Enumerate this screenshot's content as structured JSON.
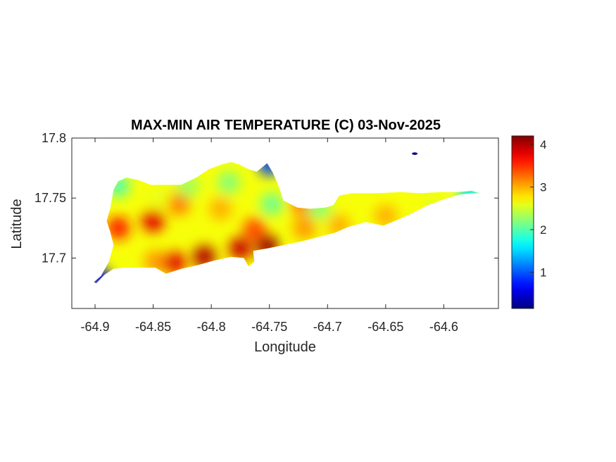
{
  "chart_data": {
    "type": "heatmap",
    "title": "MAX-MIN AIR TEMPERATURE (C) 03-Nov-2025",
    "xlabel": "Longitude",
    "ylabel": "Latitude",
    "xlim": [
      -64.92,
      -64.553
    ],
    "ylim": [
      17.658,
      17.8
    ],
    "x_ticks": [
      -64.9,
      -64.85,
      -64.8,
      -64.75,
      -64.7,
      -64.65,
      -64.6
    ],
    "x_tick_labels": [
      "-64.9",
      "-64.85",
      "-64.8",
      "-64.75",
      "-64.7",
      "-64.65",
      "-64.6"
    ],
    "y_ticks": [
      17.7,
      17.75,
      17.8
    ],
    "y_tick_labels": [
      "17.7",
      "17.75",
      "17.8"
    ],
    "colorbar": {
      "colormap": "jet",
      "limits": [
        0.15,
        4.2
      ],
      "ticks": [
        1,
        2,
        3,
        4
      ],
      "tick_labels": [
        "1",
        "2",
        "3",
        "4"
      ]
    },
    "grid": false,
    "island_outline": [
      [
        -64.899,
        17.679
      ],
      [
        -64.892,
        17.686
      ],
      [
        -64.884,
        17.691
      ],
      [
        -64.876,
        17.692
      ],
      [
        -64.862,
        17.692
      ],
      [
        -64.848,
        17.692
      ],
      [
        -64.839,
        17.687
      ],
      [
        -64.826,
        17.691
      ],
      [
        -64.812,
        17.694
      ],
      [
        -64.797,
        17.698
      ],
      [
        -64.783,
        17.701
      ],
      [
        -64.772,
        17.7
      ],
      [
        -64.768,
        17.693
      ],
      [
        -64.763,
        17.697
      ],
      [
        -64.764,
        17.706
      ],
      [
        -64.752,
        17.708
      ],
      [
        -64.737,
        17.711
      ],
      [
        -64.722,
        17.714
      ],
      [
        -64.706,
        17.718
      ],
      [
        -64.694,
        17.721
      ],
      [
        -64.682,
        17.726
      ],
      [
        -64.667,
        17.73
      ],
      [
        -64.652,
        17.727
      ],
      [
        -64.637,
        17.733
      ],
      [
        -64.626,
        17.738
      ],
      [
        -64.614,
        17.744
      ],
      [
        -64.6,
        17.749
      ],
      [
        -64.586,
        17.753
      ],
      [
        -64.576,
        17.754
      ],
      [
        -64.569,
        17.754
      ],
      [
        -64.576,
        17.756
      ],
      [
        -64.588,
        17.755
      ],
      [
        -64.602,
        17.755
      ],
      [
        -64.621,
        17.754
      ],
      [
        -64.637,
        17.755
      ],
      [
        -64.658,
        17.754
      ],
      [
        -64.679,
        17.754
      ],
      [
        -64.69,
        17.752
      ],
      [
        -64.695,
        17.744
      ],
      [
        -64.702,
        17.742
      ],
      [
        -64.715,
        17.741
      ],
      [
        -64.726,
        17.742
      ],
      [
        -64.738,
        17.748
      ],
      [
        -64.742,
        17.76
      ],
      [
        -64.747,
        17.771
      ],
      [
        -64.752,
        17.779
      ],
      [
        -64.757,
        17.775
      ],
      [
        -64.761,
        17.772
      ],
      [
        -64.768,
        17.774
      ],
      [
        -64.776,
        17.778
      ],
      [
        -64.783,
        17.78
      ],
      [
        -64.791,
        17.778
      ],
      [
        -64.802,
        17.774
      ],
      [
        -64.813,
        17.767
      ],
      [
        -64.826,
        17.761
      ],
      [
        -64.837,
        17.761
      ],
      [
        -64.852,
        17.761
      ],
      [
        -64.863,
        17.765
      ],
      [
        -64.873,
        17.767
      ],
      [
        -64.88,
        17.764
      ],
      [
        -64.884,
        17.757
      ],
      [
        -64.887,
        17.741
      ],
      [
        -64.89,
        17.731
      ],
      [
        -64.887,
        17.722
      ],
      [
        -64.884,
        17.711
      ],
      [
        -64.888,
        17.697
      ],
      [
        -64.895,
        17.685
      ],
      [
        -64.901,
        17.68
      ]
    ],
    "spot_values": [
      {
        "x": -64.88,
        "y": 17.725,
        "value": 3.6
      },
      {
        "x": -64.85,
        "y": 17.731,
        "value": 3.8
      },
      {
        "x": -64.828,
        "y": 17.745,
        "value": 3.2
      },
      {
        "x": -64.792,
        "y": 17.741,
        "value": 3.0
      },
      {
        "x": -64.845,
        "y": 17.751,
        "value": 2.6
      },
      {
        "x": -64.848,
        "y": 17.697,
        "value": 3.1
      },
      {
        "x": -64.832,
        "y": 17.696,
        "value": 3.8
      },
      {
        "x": -64.806,
        "y": 17.701,
        "value": 4.0
      },
      {
        "x": -64.775,
        "y": 17.708,
        "value": 3.9
      },
      {
        "x": -64.752,
        "y": 17.71,
        "value": 4.1
      },
      {
        "x": -64.763,
        "y": 17.724,
        "value": 3.4
      },
      {
        "x": -64.72,
        "y": 17.725,
        "value": 3.1
      },
      {
        "x": -64.722,
        "y": 17.745,
        "value": 3.2
      },
      {
        "x": -64.69,
        "y": 17.727,
        "value": 3.0
      },
      {
        "x": -64.65,
        "y": 17.735,
        "value": 3.0
      },
      {
        "x": -64.608,
        "y": 17.747,
        "value": 2.6
      },
      {
        "x": -64.785,
        "y": 17.763,
        "value": 2.2
      },
      {
        "x": -64.82,
        "y": 17.76,
        "value": 2.3
      },
      {
        "x": -64.748,
        "y": 17.745,
        "value": 2.1
      },
      {
        "x": -64.707,
        "y": 17.742,
        "value": 2.2
      },
      {
        "x": -64.88,
        "y": 17.76,
        "value": 2.0
      },
      {
        "x": -64.578,
        "y": 17.754,
        "value": 1.6
      },
      {
        "x": -64.896,
        "y": 17.683,
        "value": 0.6
      },
      {
        "x": -64.625,
        "y": 17.787,
        "value": 0.2
      },
      {
        "x": -64.75,
        "y": 17.778,
        "value": 0.9
      }
    ]
  }
}
